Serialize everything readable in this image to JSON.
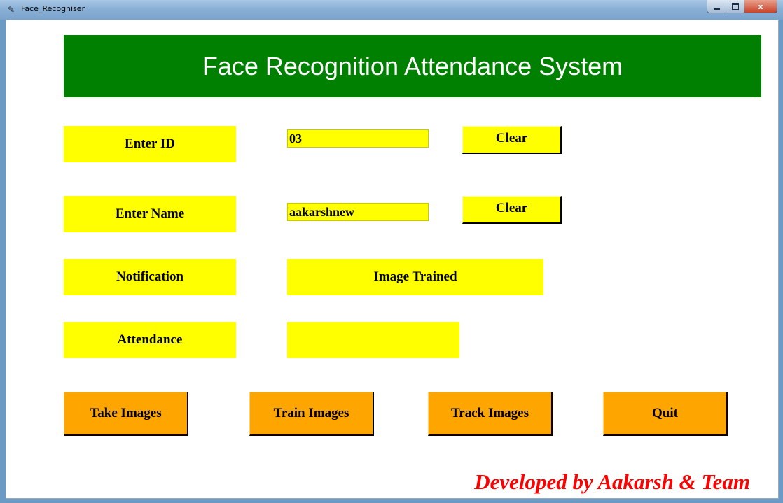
{
  "window": {
    "title": "Face_Recogniser",
    "controls": {
      "minimize": "minimize",
      "maximize": "maximize",
      "close": "x"
    }
  },
  "header": {
    "title": "Face Recognition Attendance System"
  },
  "form": {
    "id_label": "Enter ID",
    "id_value": "03",
    "id_clear": "Clear",
    "name_label": "Enter Name",
    "name_value": "aakarshnew",
    "name_clear": "Clear",
    "notification_label": "Notification",
    "notification_value": "Image Trained",
    "attendance_label": "Attendance",
    "attendance_value": ""
  },
  "actions": {
    "take": "Take Images",
    "train": "Train Images",
    "track": "Track Images",
    "quit": "Quit"
  },
  "footer": {
    "credit": "Developed by Aakarsh & Team"
  },
  "colors": {
    "header_bg": "#008000",
    "field_bg": "#ffff00",
    "action_bg": "#ffa500",
    "footer_text": "#ff0000"
  }
}
